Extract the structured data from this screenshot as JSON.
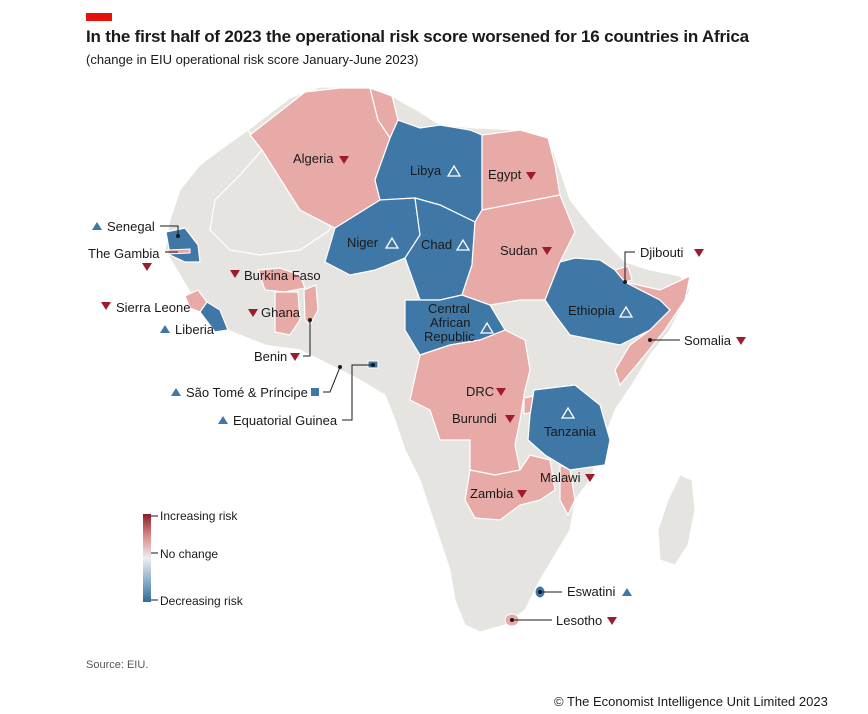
{
  "header": {
    "title": "In the first half of 2023 the operational risk score worsened for 16 countries in Africa",
    "subtitle": "(change in EIU operational risk score January-June 2023)"
  },
  "colors": {
    "accent": "#e3120b",
    "increase": "#e8aaa6",
    "decrease": "#3f78a6",
    "neutral": "#e5e4e0",
    "border": "#ffffff",
    "marker_up": "#3f78a6",
    "marker_down": "#9d1c2c"
  },
  "legend": {
    "increasing": "Increasing risk",
    "nochange": "No change",
    "decreasing": "Decreasing risk"
  },
  "countries": {
    "algeria": {
      "name": "Algeria",
      "change": "worse"
    },
    "libya": {
      "name": "Libya",
      "change": "better"
    },
    "egypt": {
      "name": "Egypt",
      "change": "worse"
    },
    "niger": {
      "name": "Niger",
      "change": "better"
    },
    "chad": {
      "name": "Chad",
      "change": "better"
    },
    "sudan": {
      "name": "Sudan",
      "change": "worse"
    },
    "car": {
      "name": "Central African Republic",
      "line1": "Central",
      "line2": "African",
      "line3": "Republic",
      "change": "better"
    },
    "ethiopia": {
      "name": "Ethiopia",
      "change": "better"
    },
    "djibouti": {
      "name": "Djibouti",
      "change": "worse"
    },
    "somalia": {
      "name": "Somalia",
      "change": "worse"
    },
    "drc": {
      "name": "DRC",
      "change": "worse"
    },
    "burundi": {
      "name": "Burundi",
      "change": "worse"
    },
    "tanzania": {
      "name": "Tanzania",
      "change": "better"
    },
    "malawi": {
      "name": "Malawi",
      "change": "worse"
    },
    "zambia": {
      "name": "Zambia",
      "change": "worse"
    },
    "eswatini": {
      "name": "Eswatini",
      "change": "better"
    },
    "lesotho": {
      "name": "Lesotho",
      "change": "worse"
    },
    "senegal": {
      "name": "Senegal",
      "change": "better"
    },
    "gambia": {
      "name": "The Gambia",
      "change": "worse"
    },
    "burkina": {
      "name": "Burkina Faso",
      "change": "worse"
    },
    "sierra_leone": {
      "name": "Sierra Leone",
      "change": "worse"
    },
    "ghana": {
      "name": "Ghana",
      "change": "worse"
    },
    "liberia": {
      "name": "Liberia",
      "change": "better"
    },
    "benin": {
      "name": "Benin",
      "change": "worse"
    },
    "sao_tome": {
      "name": "São Tomé & Príncipe",
      "change": "better"
    },
    "eq_guinea": {
      "name": "Equatorial Guinea",
      "change": "better"
    }
  },
  "footer": {
    "source": "Source: EIU.",
    "copyright": "© The Economist Intelligence Unit Limited 2023"
  }
}
